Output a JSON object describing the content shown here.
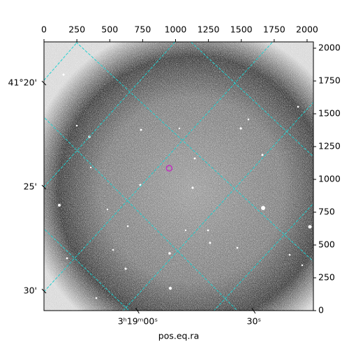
{
  "chart_data": {
    "type": "image",
    "xlabel": "pos.eq.ra",
    "xlim": [
      0,
      2048
    ],
    "ylim": [
      0,
      2048
    ],
    "xticks": [
      0,
      250,
      500,
      750,
      1000,
      1250,
      1500,
      1750,
      2000
    ],
    "yticks": [
      0,
      250,
      500,
      750,
      1000,
      1250,
      1500,
      1750,
      2000
    ],
    "ra_ticks": [
      {
        "value": 713,
        "label": "3ʰ19ᵐ00ˢ"
      },
      {
        "value": 1596,
        "label": "30ˢ"
      }
    ],
    "dec_ticks": [
      {
        "value": 1734,
        "label": "41°20'"
      },
      {
        "value": 941,
        "label": "25'"
      },
      {
        "value": 149,
        "label": "30'"
      }
    ],
    "marker": {
      "x": 952,
      "y": 1085,
      "color": "#c030c0"
    },
    "grid_color": "#20d0d0"
  }
}
